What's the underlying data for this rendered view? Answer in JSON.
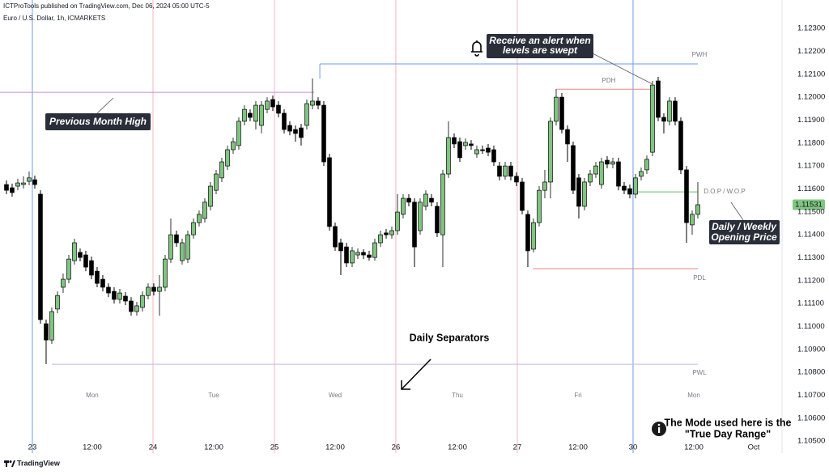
{
  "publisher": "ICTProTools published on TradingView.com, Dec 06, 2024 05:00 UTC-5",
  "brand": "TradingView",
  "chart_data": {
    "type": "candlestick",
    "title": "Euro / U.S. Dollar, 1h, ICMARKETS",
    "up_color": "#7fc57f",
    "down_color": "#000000",
    "open": [
      1.11619,
      1.11605,
      1.11612,
      1.11619,
      1.11633,
      1.1164,
      1.11577,
      1.11012,
      1.10941,
      1.11076,
      1.11171,
      1.11206,
      1.11287,
      1.11323,
      1.11312,
      1.11287,
      1.11241,
      1.11206,
      1.11171,
      1.11153,
      1.11118,
      1.11132,
      1.11111,
      1.11065,
      1.11083,
      1.11135,
      1.11171,
      1.11153,
      1.11171,
      1.11294,
      1.114,
      1.11287,
      1.11294,
      1.114,
      1.11453,
      1.11471,
      1.11524,
      1.11594,
      1.11648,
      1.117,
      1.11771,
      1.11789,
      1.11895,
      1.1193,
      1.11895,
      1.11877,
      1.11947,
      1.1199,
      1.11965,
      1.1193,
      1.11877,
      1.11859,
      1.11866,
      1.11877,
      1.11965,
      1.11983,
      1.11965,
      1.11736,
      1.11436,
      1.11365,
      1.11347,
      1.11277,
      1.11312,
      1.11323,
      1.11312,
      1.11301,
      1.11365,
      1.11408,
      1.114,
      1.11418,
      1.11489,
      1.11559,
      1.11542,
      1.11418,
      1.11524,
      1.11559,
      1.11524,
      1.114,
      1.11665,
      1.11824,
      1.11806,
      1.11789,
      1.11796,
      1.11753,
      1.11771,
      1.11778,
      1.11771,
      1.117,
      1.11655,
      1.117,
      1.11655,
      1.1163,
      1.11489,
      1.11337,
      1.11453,
      1.11594,
      1.1163,
      1.11895,
      1.12,
      1.11859,
      1.11789,
      1.11648,
      1.11524,
      1.1163,
      1.11665,
      1.11619,
      1.11725,
      1.11708,
      1.11718,
      1.11612,
      1.11601,
      1.11577,
      1.11655,
      1.11683,
      1.1176,
      1.12071,
      1.11912,
      1.11895,
      1.11983,
      1.11895,
      1.11683,
      1.11443,
      1.11489
    ],
    "high": [
      1.11637,
      1.11623,
      1.11644,
      1.11655,
      1.11676,
      1.11658,
      1.11594,
      1.1103,
      1.11083,
      1.11153,
      1.11231,
      1.11312,
      1.11383,
      1.1134,
      1.1133,
      1.11305,
      1.11259,
      1.11224,
      1.11188,
      1.11171,
      1.11164,
      1.1115,
      1.11128,
      1.11107,
      1.11153,
      1.11188,
      1.11188,
      1.11224,
      1.11312,
      1.11471,
      1.11418,
      1.11383,
      1.11418,
      1.11471,
      1.11506,
      1.11559,
      1.1163,
      1.11683,
      1.11736,
      1.11789,
      1.11824,
      1.11912,
      1.11965,
      1.11947,
      1.11983,
      1.11983,
      1.12,
      1.12007,
      1.11983,
      1.11947,
      1.11895,
      1.11877,
      1.11884,
      1.1199,
      1.12082,
      1.12,
      1.11983,
      1.11753,
      1.11453,
      1.11383,
      1.11365,
      1.11347,
      1.1134,
      1.11337,
      1.1133,
      1.11383,
      1.11418,
      1.11425,
      1.11436,
      1.11577,
      1.11577,
      1.11577,
      1.11559,
      1.11559,
      1.11594,
      1.11577,
      1.11542,
      1.11683,
      1.11895,
      1.11842,
      1.11824,
      1.1182,
      1.11813,
      1.11789,
      1.11789,
      1.11796,
      1.11789,
      1.11718,
      1.11718,
      1.11718,
      1.11672,
      1.11648,
      1.11506,
      1.11471,
      1.11612,
      1.11683,
      1.11912,
      1.12036,
      1.12018,
      1.11877,
      1.11806,
      1.11665,
      1.11648,
      1.11683,
      1.11718,
      1.11736,
      1.11743,
      1.11736,
      1.11736,
      1.1163,
      1.11619,
      1.11665,
      1.11693,
      1.11746,
      1.12071,
      1.12089,
      1.1193,
      1.12,
      1.12,
      1.11912,
      1.117,
      1.11506,
      1.1163
    ],
    "low": [
      1.11577,
      1.11566,
      1.11594,
      1.11601,
      1.11616,
      1.11601,
      1.11012,
      1.10836,
      1.10924,
      1.11058,
      1.11146,
      1.11188,
      1.1127,
      1.11284,
      1.11241,
      1.11206,
      1.11171,
      1.11153,
      1.11128,
      1.111,
      1.111,
      1.11093,
      1.11047,
      1.11047,
      1.11065,
      1.11118,
      1.11135,
      1.11047,
      1.11153,
      1.11277,
      1.11347,
      1.1127,
      1.11277,
      1.11383,
      1.11436,
      1.11453,
      1.11506,
      1.11577,
      1.1163,
      1.11683,
      1.11753,
      1.11771,
      1.11877,
      1.11895,
      1.11859,
      1.11842,
      1.1193,
      1.1194,
      1.11912,
      1.11842,
      1.11834,
      1.11806,
      1.11789,
      1.11859,
      1.11947,
      1.11947,
      1.117,
      1.11418,
      1.1133,
      1.11224,
      1.11259,
      1.11259,
      1.11294,
      1.11294,
      1.11287,
      1.11287,
      1.11347,
      1.11383,
      1.11383,
      1.114,
      1.11471,
      1.11524,
      1.11259,
      1.114,
      1.11506,
      1.11524,
      1.1139,
      1.11259,
      1.11648,
      1.11778,
      1.11718,
      1.11771,
      1.11771,
      1.11736,
      1.11753,
      1.11743,
      1.117,
      1.11637,
      1.1164,
      1.11637,
      1.11612,
      1.11489,
      1.11259,
      1.11323,
      1.11436,
      1.11559,
      1.11559,
      1.11877,
      1.11842,
      1.11718,
      1.11577,
      1.11471,
      1.11506,
      1.11612,
      1.11648,
      1.11601,
      1.1169,
      1.1169,
      1.11594,
      1.11577,
      1.11559,
      1.11559,
      1.11637,
      1.11665,
      1.11743,
      1.11895,
      1.11842,
      1.11877,
      1.11877,
      1.11665,
      1.11365,
      1.114,
      1.11471
    ],
    "close": [
      1.11594,
      1.11584,
      1.11626,
      1.11626,
      1.11648,
      1.11619,
      1.1103,
      1.10941,
      1.11065,
      1.11135,
      1.11206,
      1.11294,
      1.11365,
      1.11301,
      1.11259,
      1.11224,
      1.11188,
      1.11171,
      1.11146,
      1.11118,
      1.11146,
      1.11111,
      1.11065,
      1.1109,
      1.11135,
      1.11171,
      1.11153,
      1.11171,
      1.11294,
      1.114,
      1.11365,
      1.11365,
      1.114,
      1.11453,
      1.11489,
      1.11542,
      1.11612,
      1.11665,
      1.11718,
      1.11771,
      1.11806,
      1.11895,
      1.11947,
      1.11912,
      1.11965,
      1.11965,
      1.11983,
      1.11958,
      1.1193,
      1.11859,
      1.11852,
      1.11842,
      1.11824,
      1.11972,
      1.11983,
      1.11965,
      1.11718,
      1.11436,
      1.11347,
      1.1133,
      1.11277,
      1.1133,
      1.11323,
      1.11312,
      1.11301,
      1.11365,
      1.114,
      1.114,
      1.11418,
      1.11499,
      1.11559,
      1.11542,
      1.11347,
      1.11542,
      1.11577,
      1.11542,
      1.11408,
      1.11665,
      1.11824,
      1.11796,
      1.11736,
      1.11803,
      1.11789,
      1.11771,
      1.11767,
      1.1176,
      1.11718,
      1.11655,
      1.117,
      1.11655,
      1.1163,
      1.11506,
      1.1133,
      1.11453,
      1.11594,
      1.1163,
      1.11895,
      1.12,
      1.11859,
      1.11796,
      1.11594,
      1.11524,
      1.1163,
      1.11665,
      1.117,
      1.11718,
      1.11708,
      1.11718,
      1.11612,
      1.11594,
      1.11577,
      1.11648,
      1.11676,
      1.11729,
      1.12053,
      1.11912,
      1.11895,
      1.11983,
      1.11895,
      1.11683,
      1.11453,
      1.11489,
      1.11531
    ],
    "xlim": [
      -1.14,
      136.86
    ],
    "xticks": [
      {
        "value": 4.57,
        "label": "23"
      },
      {
        "value": 15.14,
        "label": "12:00"
      },
      {
        "value": 25.86,
        "label": "24"
      },
      {
        "value": 36.57,
        "label": "12:00"
      },
      {
        "value": 47.29,
        "label": "25"
      },
      {
        "value": 58,
        "label": "12:00"
      },
      {
        "value": 68.71,
        "label": "26"
      },
      {
        "value": 79.57,
        "label": "12:00"
      },
      {
        "value": 90.14,
        "label": "27"
      },
      {
        "value": 100.86,
        "label": "12:00"
      },
      {
        "value": 110.57,
        "label": "30"
      },
      {
        "value": 121.29,
        "label": "12:00"
      },
      {
        "value": 131.86,
        "label": "Oct"
      }
    ],
    "ylim": [
      1.10465,
      1.12424
    ],
    "yticks": [
      {
        "value": 1.105,
        "label": "1.10500"
      },
      {
        "value": 1.106,
        "label": "1.10600"
      },
      {
        "value": 1.107,
        "label": "1.10700"
      },
      {
        "value": 1.108,
        "label": "1.10800"
      },
      {
        "value": 1.109,
        "label": "1.10900"
      },
      {
        "value": 1.11,
        "label": "1.11000"
      },
      {
        "value": 1.111,
        "label": "1.11100"
      },
      {
        "value": 1.112,
        "label": "1.11200"
      },
      {
        "value": 1.113,
        "label": "1.11300"
      },
      {
        "value": 1.114,
        "label": "1.11400"
      },
      {
        "value": 1.115,
        "label": "1.11500"
      },
      {
        "value": 1.116,
        "label": "1.11600"
      },
      {
        "value": 1.117,
        "label": "1.11700"
      },
      {
        "value": 1.118,
        "label": "1.11800"
      },
      {
        "value": 1.119,
        "label": "1.11900"
      },
      {
        "value": 1.12,
        "label": "1.12000"
      },
      {
        "value": 1.121,
        "label": "1.12100"
      },
      {
        "value": 1.122,
        "label": "1.12200"
      },
      {
        "value": 1.123,
        "label": "1.12300"
      }
    ],
    "separators": [
      {
        "x": 4.57,
        "color": "#6f9be8"
      },
      {
        "x": 25.86,
        "color": "#f4b4c0"
      },
      {
        "x": 47.29,
        "color": "#f4b4c0"
      },
      {
        "x": 68.71,
        "color": "#f4b4c0"
      },
      {
        "x": 90.14,
        "color": "#f4b4c0"
      },
      {
        "x": 110.57,
        "color": "#6f9be8"
      }
    ],
    "day_labels": [
      {
        "label": "Mon",
        "x": 15.14
      },
      {
        "label": "Tue",
        "x": 36.57
      },
      {
        "label": "Wed",
        "x": 58
      },
      {
        "label": "Thu",
        "x": 79.57
      },
      {
        "label": "Fri",
        "x": 100.86
      },
      {
        "label": "Mon",
        "x": 121.29
      }
    ],
    "levels": [
      {
        "value": 1.12021,
        "x": [
          -1.14,
          54.3
        ],
        "color": "#c58be0"
      },
      {
        "label": "PWH",
        "value": 1.12145,
        "x": [
          55.3,
          122
        ],
        "color": "#6f9be8"
      },
      {
        "label": "PDH",
        "value": 1.12035,
        "x": [
          97.1,
          114.3
        ],
        "color": "#f08080"
      },
      {
        "label": "D.O.P / W.O.P",
        "value": 1.11587,
        "x": [
          110.6,
          122
        ],
        "color": "#66bb6a"
      },
      {
        "label": "PDL",
        "value": 1.11252,
        "x": [
          92.9,
          122
        ],
        "color": "#f08080"
      },
      {
        "label": "PWL",
        "value": 1.10835,
        "x": [
          8,
          122
        ],
        "color": "#c7b8e0"
      }
    ],
    "annotations": {
      "pmh": "Previous Month High",
      "alert": [
        "Receive an alert when",
        "levels are swept"
      ],
      "opening": [
        "Daily / Weekly",
        "Opening Price"
      ],
      "separators": "Daily Separators",
      "mode": [
        "The Mode used here is the",
        "\"True Day Range\""
      ]
    }
  }
}
